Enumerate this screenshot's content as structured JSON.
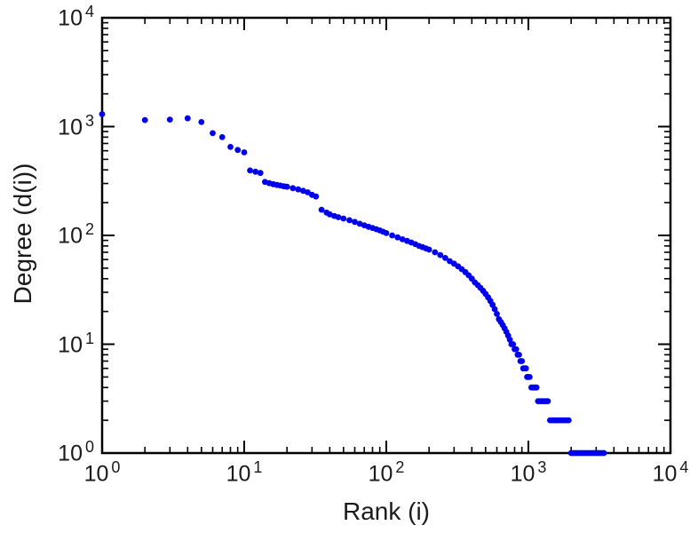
{
  "chart_data": {
    "type": "scatter",
    "title": "",
    "xlabel": "Rank (i)",
    "ylabel": "Degree (d(i))",
    "x_scale": "log",
    "y_scale": "log",
    "xlim": [
      1,
      10000
    ],
    "ylim": [
      1,
      10000
    ],
    "x_log_range": [
      0,
      4
    ],
    "y_log_range": [
      0,
      4
    ],
    "x_tick_exponents": [
      0,
      1,
      2,
      3,
      4
    ],
    "y_tick_exponents": [
      0,
      1,
      2,
      3,
      4
    ],
    "tick_base": "10",
    "grid": false,
    "legend": null,
    "point_color": "#0000ee",
    "frame_color": "#000000",
    "background_color": "#ffffff",
    "points": [
      [
        1,
        1300
      ],
      [
        2,
        1150
      ],
      [
        3,
        1160
      ],
      [
        4,
        1190
      ],
      [
        5,
        1100
      ],
      [
        6,
        870
      ],
      [
        7,
        800
      ],
      [
        8,
        650
      ],
      [
        9,
        610
      ],
      [
        10,
        580
      ],
      [
        11,
        395
      ],
      [
        12,
        385
      ],
      [
        13,
        375
      ],
      [
        14,
        310
      ],
      [
        15,
        302
      ],
      [
        16,
        296
      ],
      [
        17,
        291
      ],
      [
        18,
        287
      ],
      [
        19,
        283
      ],
      [
        20,
        280
      ],
      [
        22,
        272
      ],
      [
        24,
        265
      ],
      [
        26,
        257
      ],
      [
        28,
        249
      ],
      [
        30,
        236
      ],
      [
        32,
        228
      ],
      [
        35,
        172
      ],
      [
        38,
        162
      ],
      [
        40,
        156
      ],
      [
        43,
        151
      ],
      [
        46,
        147
      ],
      [
        50,
        143
      ],
      [
        55,
        138
      ],
      [
        60,
        133
      ],
      [
        65,
        128
      ],
      [
        70,
        124
      ],
      [
        75,
        120
      ],
      [
        80,
        117
      ],
      [
        85,
        114
      ],
      [
        90,
        111
      ],
      [
        95,
        108
      ],
      [
        100,
        105
      ],
      [
        110,
        100
      ],
      [
        120,
        96
      ],
      [
        130,
        92
      ],
      [
        140,
        89
      ],
      [
        150,
        86
      ],
      [
        160,
        83
      ],
      [
        170,
        80
      ],
      [
        180,
        78
      ],
      [
        190,
        76
      ],
      [
        200,
        74
      ],
      [
        220,
        70
      ],
      [
        240,
        66
      ],
      [
        260,
        62
      ],
      [
        280,
        58
      ],
      [
        300,
        55
      ],
      [
        320,
        52
      ],
      [
        340,
        49
      ],
      [
        360,
        46
      ],
      [
        380,
        43
      ],
      [
        400,
        40
      ],
      [
        420,
        37
      ],
      [
        440,
        35
      ],
      [
        460,
        33
      ],
      [
        480,
        31
      ],
      [
        500,
        29
      ],
      [
        520,
        27
      ],
      [
        540,
        25
      ],
      [
        560,
        23
      ],
      [
        580,
        21
      ],
      [
        600,
        19
      ],
      [
        620,
        17
      ],
      [
        640,
        16
      ],
      [
        660,
        15
      ],
      [
        680,
        14
      ],
      [
        700,
        13
      ],
      [
        720,
        12
      ],
      [
        740,
        11
      ],
      [
        760,
        10
      ],
      [
        780,
        10
      ],
      [
        800,
        9
      ],
      [
        820,
        9
      ],
      [
        840,
        8
      ],
      [
        860,
        8
      ],
      [
        880,
        7
      ],
      [
        900,
        7
      ],
      [
        920,
        6
      ],
      [
        940,
        6
      ],
      [
        960,
        6
      ],
      [
        980,
        5
      ],
      [
        1000,
        5
      ],
      [
        1020,
        5
      ],
      [
        1050,
        4
      ],
      [
        1080,
        4
      ],
      [
        1110,
        4
      ],
      [
        1140,
        4
      ],
      [
        1170,
        3
      ],
      [
        1210,
        3
      ],
      [
        1250,
        3
      ],
      [
        1290,
        3
      ],
      [
        1330,
        3
      ],
      [
        1370,
        3
      ],
      [
        1420,
        2
      ],
      [
        1470,
        2
      ],
      [
        1520,
        2
      ],
      [
        1570,
        2
      ],
      [
        1620,
        2
      ],
      [
        1680,
        2
      ],
      [
        1740,
        2
      ],
      [
        1800,
        2
      ],
      [
        1860,
        2
      ],
      [
        1920,
        2
      ],
      [
        2000,
        1
      ],
      [
        2060,
        1
      ],
      [
        2120,
        1
      ],
      [
        2180,
        1
      ],
      [
        2250,
        1
      ],
      [
        2320,
        1
      ],
      [
        2400,
        1
      ],
      [
        2480,
        1
      ],
      [
        2560,
        1
      ],
      [
        2650,
        1
      ],
      [
        2740,
        1
      ],
      [
        2830,
        1
      ],
      [
        2920,
        1
      ],
      [
        3010,
        1
      ],
      [
        3100,
        1
      ],
      [
        3200,
        1
      ],
      [
        3300,
        1
      ],
      [
        3400,
        1
      ]
    ]
  }
}
